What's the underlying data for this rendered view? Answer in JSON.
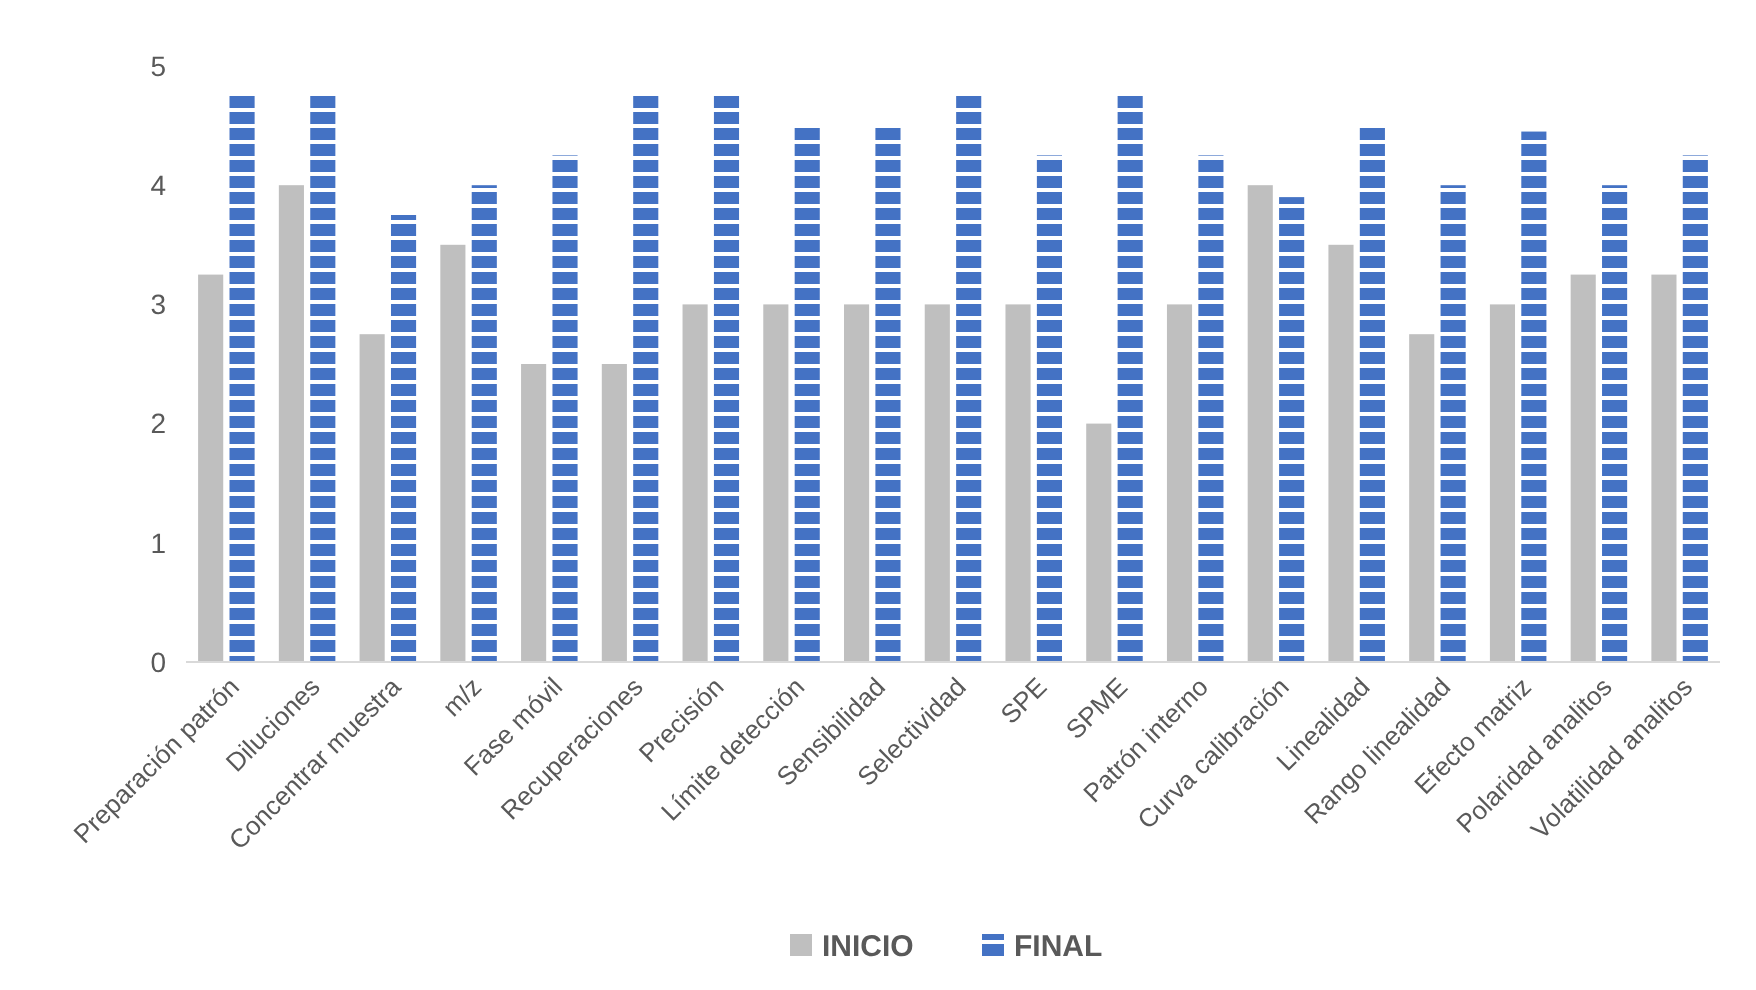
{
  "chart_data": {
    "type": "bar",
    "categories": [
      "Preparación patrón",
      "Diluciones",
      "Concentrar muestra",
      "m/z",
      "Fase móvil",
      "Recuperaciones",
      "Precisión",
      "Límite detección",
      "Sensibilidad",
      "Selectividad",
      "SPE",
      "SPME",
      "Patrón interno",
      "Curva calibración",
      "Linealidad",
      "Rango linealidad",
      "Efecto matriz",
      "Polaridad analitos",
      "Volatilidad analitos"
    ],
    "series": [
      {
        "name": "INICIO",
        "color": "#bfbfbf",
        "values": [
          3.25,
          4,
          2.75,
          3.5,
          2.5,
          2.5,
          3,
          3,
          3,
          3,
          3,
          2,
          3,
          4,
          3.5,
          2.75,
          3,
          3.25,
          3.25
        ]
      },
      {
        "name": "FINAL",
        "color": "#4472c4",
        "values": [
          4.75,
          4.75,
          3.75,
          4,
          4.25,
          4.75,
          4.75,
          4.5,
          4.5,
          4.75,
          4.25,
          4.75,
          4.25,
          3.9,
          4.5,
          4,
          4.45,
          4,
          4.25
        ]
      }
    ],
    "ylim": [
      0,
      5
    ],
    "yticks": [
      0,
      1,
      2,
      3,
      4,
      5
    ],
    "grid": false,
    "legend": "bottom"
  }
}
